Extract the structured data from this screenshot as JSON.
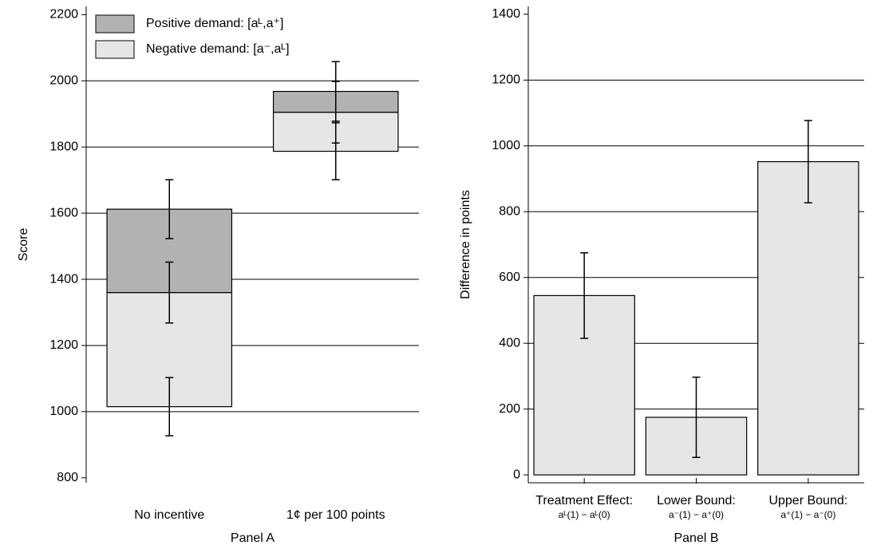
{
  "chart_data": [
    {
      "type": "floating_bar",
      "xlabel": "Panel A",
      "ylabel": "Score",
      "categories": [
        "No incentive",
        "1¢ per 100 points"
      ],
      "series": [
        {
          "name": "Positive demand: [aᴸ,a⁺]",
          "color": "#b2b2b2"
        },
        {
          "name": "Negative demand: [a⁻,aᴸ]",
          "color": "#e6e6e6"
        }
      ],
      "points": [
        [
          1015,
          1360,
          1612
        ],
        [
          1787,
          1905,
          1968
        ]
      ],
      "errors": [
        [
          88,
          92,
          89
        ],
        [
          86,
          93,
          90
        ]
      ],
      "ylim": [
        785,
        2225
      ],
      "yticks": [
        800,
        1000,
        1200,
        1400,
        1600,
        1800,
        2000,
        2200
      ],
      "grid": true
    },
    {
      "type": "bar",
      "xlabel": "Panel B",
      "ylabel": "Difference in points",
      "categories": [
        "Treatment Effect:",
        "Lower Bound:",
        "Upper Bound:"
      ],
      "category_sublabels": [
        "aᴸ(1) − aᴸ(0)",
        "a⁻(1) − a⁺(0)",
        "a⁺(1) − a⁻(0)"
      ],
      "values": [
        545,
        175,
        952
      ],
      "errors": [
        130,
        122,
        125
      ],
      "color": "#e6e6e6",
      "ylim": [
        -24,
        1424
      ],
      "yticks": [
        0,
        200,
        400,
        600,
        800,
        1000,
        1200,
        1400
      ],
      "grid": true
    }
  ]
}
